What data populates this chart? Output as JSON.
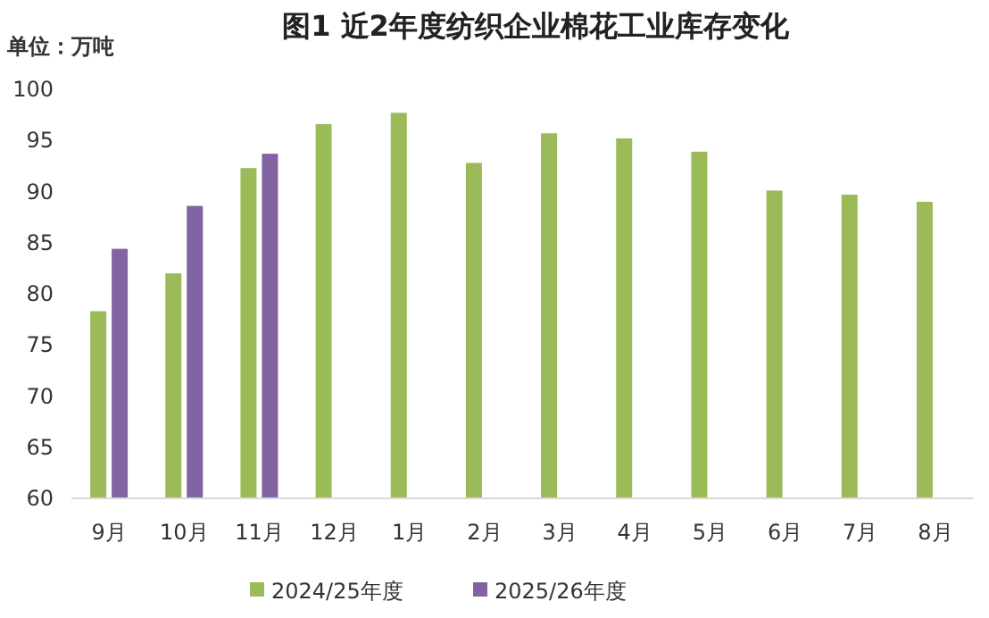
{
  "chart_data": {
    "type": "bar",
    "title": "图1 近2年度纺织企业棉花工业库存变化",
    "ylabel": "单位：万吨",
    "categories": [
      "9月",
      "10月",
      "11月",
      "12月",
      "1月",
      "2月",
      "3月",
      "4月",
      "5月",
      "6月",
      "7月",
      "8月"
    ],
    "series": [
      {
        "name": "2024/25年度",
        "color": "#9bbb59",
        "values": [
          78.3,
          82.0,
          92.3,
          96.6,
          97.7,
          92.8,
          95.7,
          95.2,
          93.9,
          90.1,
          89.7,
          89.0
        ]
      },
      {
        "name": "2025/26年度",
        "color": "#8064a2",
        "values": [
          84.4,
          88.6,
          93.7,
          null,
          null,
          null,
          null,
          null,
          null,
          null,
          null,
          null
        ]
      }
    ],
    "ylim": [
      60,
      100
    ],
    "yticks": [
      60,
      65,
      70,
      75,
      80,
      85,
      90,
      95,
      100
    ],
    "grid": false,
    "legend": "bottom"
  }
}
